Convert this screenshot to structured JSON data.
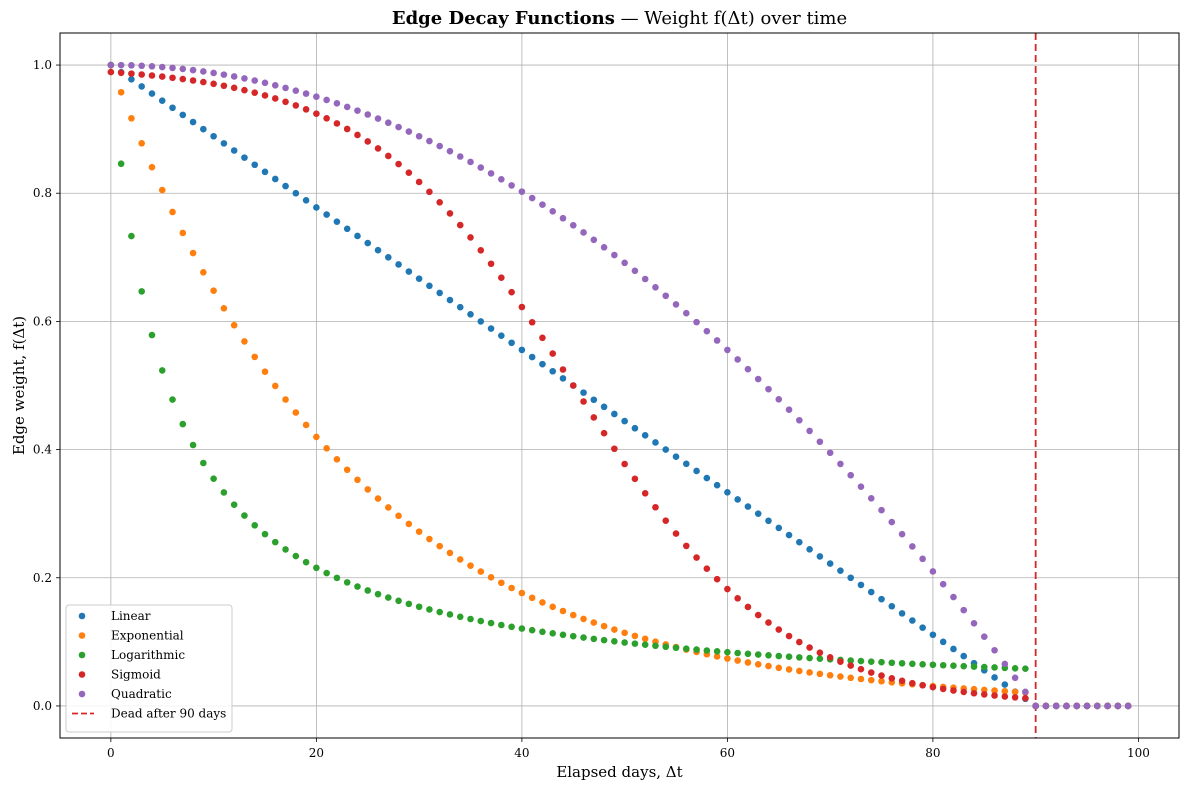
{
  "chart_data": {
    "type": "scatter",
    "title_bold": "Edge Decay Functions",
    "title_rest": " — Weight f(Δt) over time",
    "xlabel": "Elapsed days, Δt",
    "ylabel": "Edge weight, f(Δt)",
    "xlim": [
      -4.95,
      103.95
    ],
    "ylim": [
      -0.05,
      1.05
    ],
    "xticks": [
      0,
      20,
      40,
      60,
      80,
      100
    ],
    "yticks": [
      0.0,
      0.2,
      0.4,
      0.6,
      0.8,
      1.0
    ],
    "xtick_labels": [
      "0",
      "20",
      "40",
      "60",
      "80",
      "100"
    ],
    "ytick_labels": [
      "0.0",
      "0.2",
      "0.4",
      "0.6",
      "0.8",
      "1.0"
    ],
    "grid": true,
    "legend_position": "lower-left",
    "series": [
      {
        "name": "Linear",
        "color": "#1f77b4",
        "decay": "linear",
        "x_start": 0,
        "x_end": 99,
        "step": 1,
        "cutoff": 90
      },
      {
        "name": "Exponential",
        "color": "#ff7f0e",
        "decay": "exponential",
        "rate": 0.0434,
        "x_start": 0,
        "x_end": 99,
        "step": 1,
        "cutoff": 90
      },
      {
        "name": "Logarithmic",
        "color": "#2ca02c",
        "decay": "logarithmic",
        "k": 0.182,
        "x_start": 0,
        "x_end": 99,
        "step": 1,
        "cutoff": 90
      },
      {
        "name": "Sigmoid",
        "color": "#d62728",
        "decay": "sigmoid",
        "midpoint": 45,
        "steepness": 0.1,
        "x_start": 0,
        "x_end": 99,
        "step": 1,
        "cutoff": 90
      },
      {
        "name": "Quadratic",
        "color": "#9467bd",
        "decay": "quadratic",
        "x_start": 0,
        "x_end": 99,
        "step": 1,
        "cutoff": 90
      }
    ],
    "vline": {
      "x": 90,
      "color": "#d62728",
      "style": "dashed",
      "label": "Dead after 90 days"
    }
  }
}
